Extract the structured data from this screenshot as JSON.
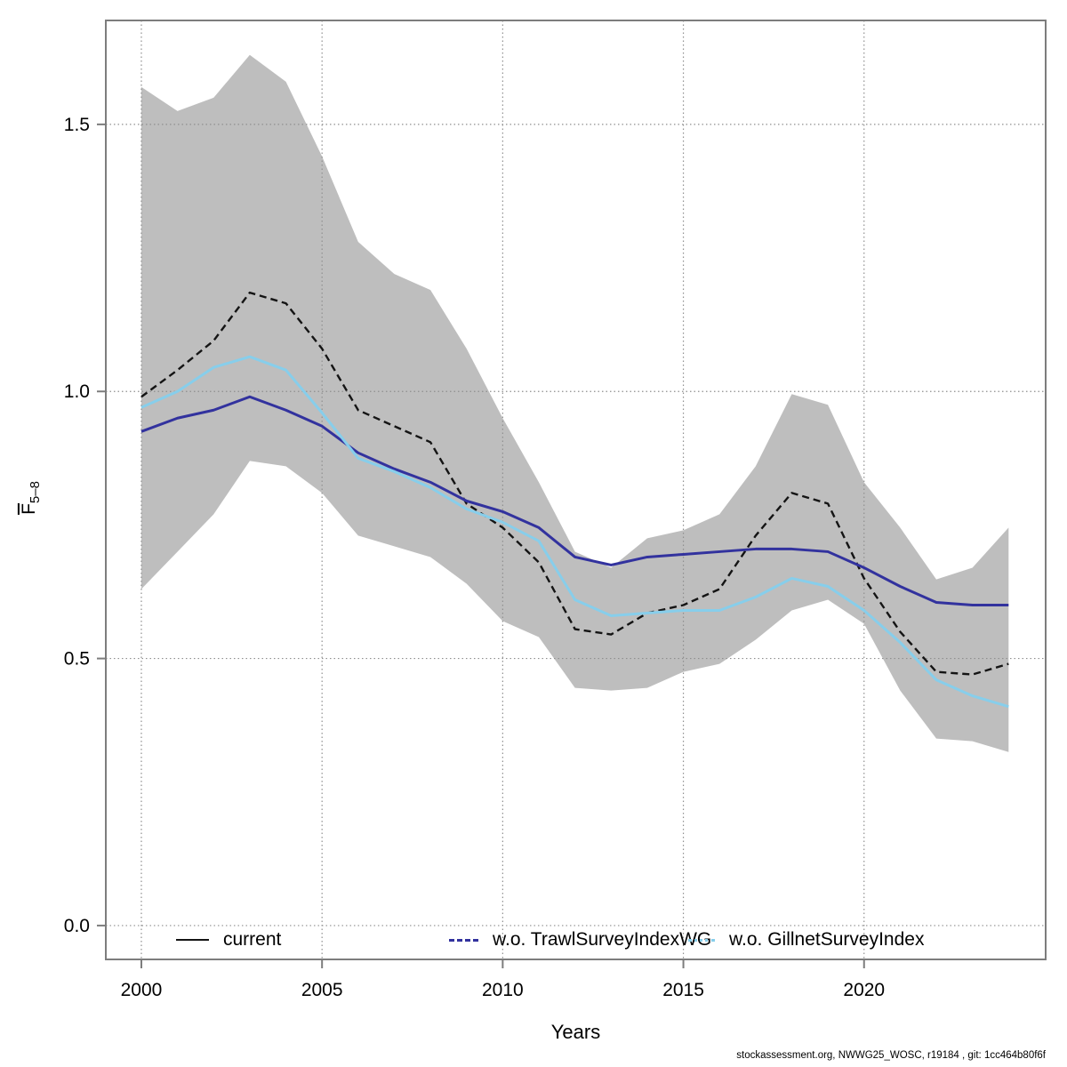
{
  "page": {
    "background": "#ffffff"
  },
  "footer": {
    "attribution": "stockassessment.org, NWWG25_WOSC, r19184 , git: 1cc464b80f6f"
  },
  "chart_data": {
    "type": "line",
    "title": "",
    "xlabel": "Years",
    "ylabel": {
      "letter": "F",
      "subscript": "5–8"
    },
    "xlim": [
      1999.016,
      2025.026
    ],
    "ylim": [
      -0.0634,
      1.6946
    ],
    "grid": "dotted",
    "legend_position": "bottom-inside",
    "x": [
      2000,
      2001,
      2002,
      2003,
      2004,
      2005,
      2006,
      2007,
      2008,
      2009,
      2010,
      2011,
      2012,
      2013,
      2014,
      2015,
      2016,
      2017,
      2018,
      2019,
      2020,
      2021,
      2022,
      2023,
      2024
    ],
    "xticks": {
      "values": [
        2000,
        2005,
        2010,
        2015,
        2020
      ],
      "labels": [
        "2000",
        "2005",
        "2010",
        "2015",
        "2020"
      ]
    },
    "yticks": {
      "values": [
        0.0,
        0.5,
        1.0,
        1.5
      ],
      "labels": [
        "0.0",
        "0.5",
        "1.0",
        "1.5"
      ]
    },
    "band": {
      "series": "current",
      "color": "#bebebe",
      "lower": [
        0.63,
        0.7,
        0.77,
        0.87,
        0.86,
        0.81,
        0.73,
        0.71,
        0.69,
        0.64,
        0.57,
        0.54,
        0.445,
        0.44,
        0.445,
        0.475,
        0.49,
        0.535,
        0.59,
        0.61,
        0.565,
        0.44,
        0.35,
        0.345,
        0.325
      ],
      "upper": [
        1.57,
        1.525,
        1.55,
        1.63,
        1.58,
        1.44,
        1.28,
        1.22,
        1.19,
        1.08,
        0.95,
        0.83,
        0.7,
        0.67,
        0.725,
        0.74,
        0.77,
        0.86,
        0.995,
        0.975,
        0.83,
        0.745,
        0.648,
        0.67,
        0.745
      ]
    },
    "series": [
      {
        "name": "current",
        "color": "#141414",
        "plot_style": "dashed",
        "values": [
          0.99,
          1.04,
          1.095,
          1.185,
          1.165,
          1.08,
          0.965,
          0.935,
          0.905,
          0.79,
          0.745,
          0.68,
          0.555,
          0.545,
          0.585,
          0.6,
          0.63,
          0.73,
          0.81,
          0.79,
          0.65,
          0.55,
          0.475,
          0.47,
          0.49
        ]
      },
      {
        "name": "w.o. TrawlSurveyIndexWG",
        "color": "#32329e",
        "plot_style": "solid",
        "values": [
          0.925,
          0.95,
          0.965,
          0.99,
          0.965,
          0.935,
          0.885,
          0.855,
          0.83,
          0.795,
          0.775,
          0.745,
          0.69,
          0.675,
          0.69,
          0.695,
          0.7,
          0.705,
          0.705,
          0.7,
          0.67,
          0.635,
          0.605,
          0.6,
          0.6
        ]
      },
      {
        "name": "w.o. GillnetSurveyIndex",
        "color": "#87ceeb",
        "plot_style": "solid",
        "values": [
          0.97,
          1.0,
          1.045,
          1.065,
          1.04,
          0.96,
          0.875,
          0.85,
          0.82,
          0.78,
          0.755,
          0.72,
          0.61,
          0.58,
          0.585,
          0.59,
          0.59,
          0.615,
          0.65,
          0.635,
          0.59,
          0.53,
          0.46,
          0.43,
          0.41
        ]
      }
    ],
    "legend": {
      "items": [
        {
          "label": "current",
          "color": "#141414",
          "line_style": "solid"
        },
        {
          "label": "w.o. TrawlSurveyIndexWG",
          "color": "#32329e",
          "line_style": "dashed"
        },
        {
          "label": "w.o. GillnetSurveyIndex",
          "color": "#87ceeb",
          "line_style": "dotted"
        }
      ]
    },
    "colors": {
      "band": "#bebebe",
      "frame": "#7d7d7d",
      "grid": "#8f8f8f",
      "text": "#000000"
    }
  }
}
